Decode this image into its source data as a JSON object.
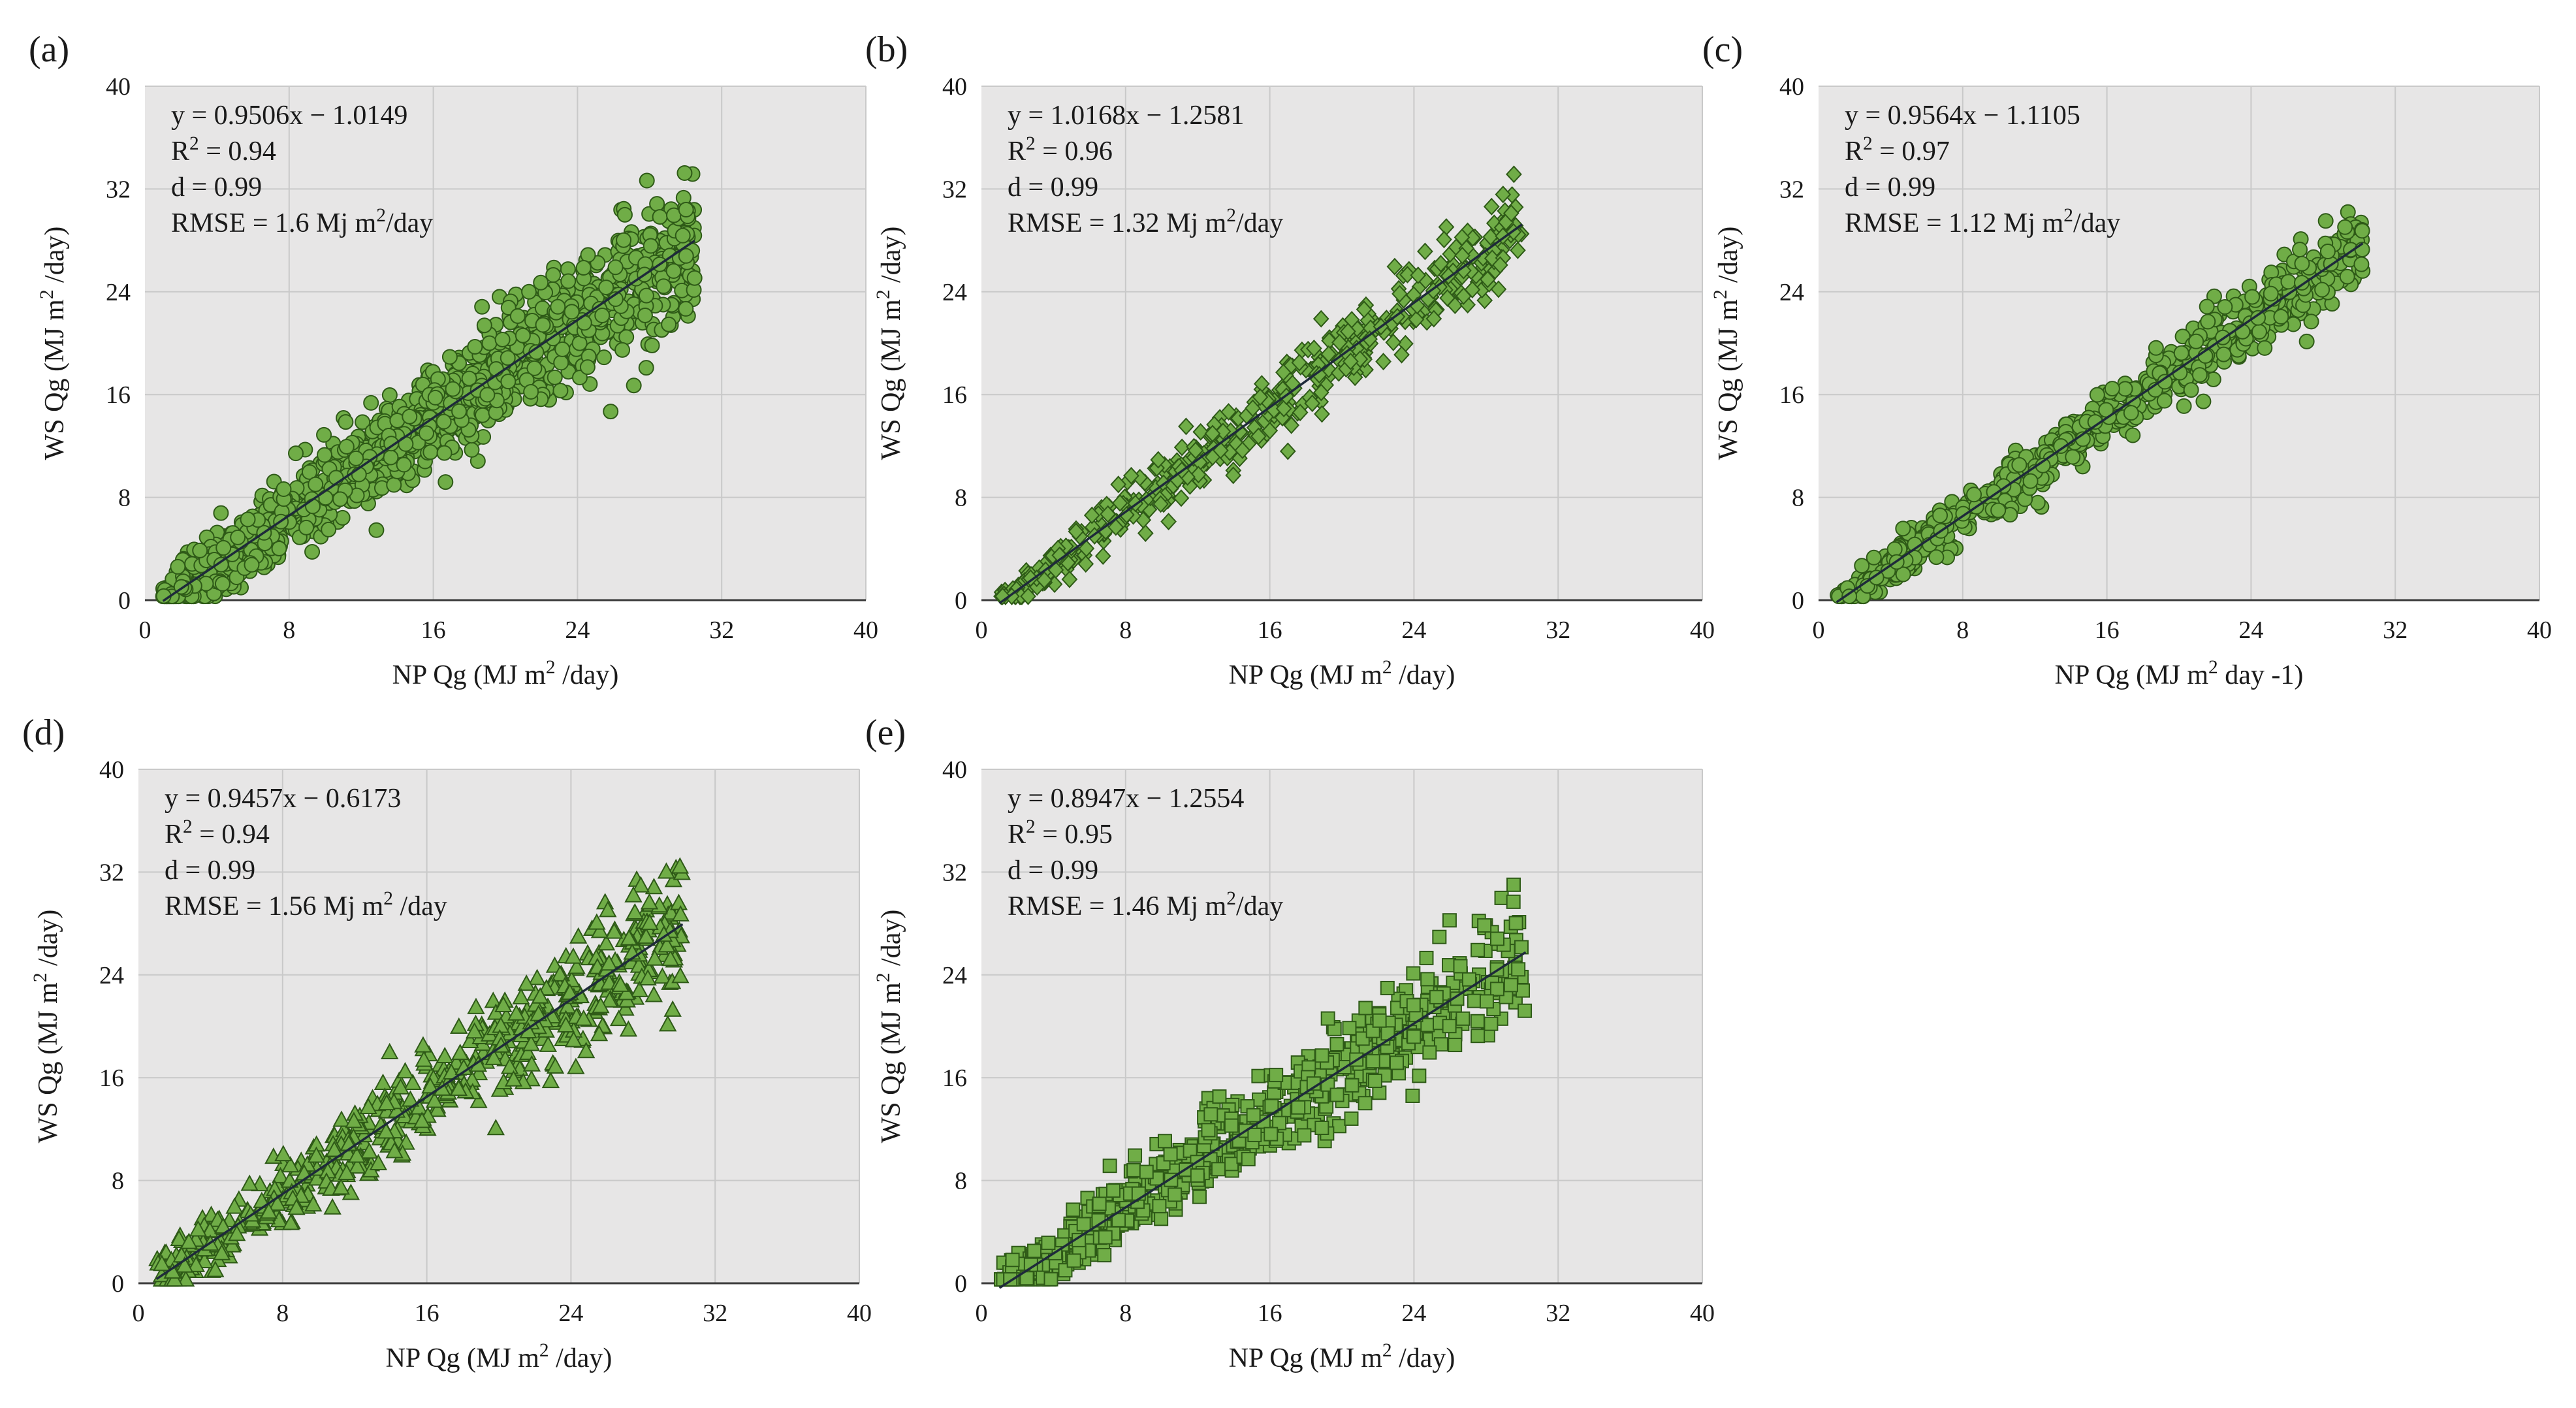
{
  "figure_title": "",
  "chart_data": [
    {
      "type": "scatter",
      "panel_label": "(a)",
      "marker": "circle",
      "xlabel": "NP Qg (MJ m2 /day)",
      "ylabel": "WS Qg (MJ m2 /day)",
      "xlim": [
        0,
        40
      ],
      "ylim": [
        0,
        40
      ],
      "ticks": [
        "0",
        "8",
        "16",
        "24",
        "32",
        "40"
      ],
      "grid": true,
      "fit": {
        "slope": 0.9506,
        "intercept": -1.0149,
        "x_range": [
          1,
          30.5
        ]
      },
      "stats": [
        "y = 0.9506x − 1.0149",
        "R2 = 0.94",
        "d = 0.99",
        "RMSE = 1.6 Mj m2/day"
      ],
      "point_cloud": {
        "count": 1400,
        "x_range": [
          1,
          30.5
        ],
        "residual_sd": 1.6
      }
    },
    {
      "type": "scatter",
      "panel_label": "(b)",
      "marker": "diamond",
      "xlabel": "NP Qg (MJ m2 /day)",
      "ylabel": "WS Qg (MJ m2 /day)",
      "xlim": [
        0,
        40
      ],
      "ylim": [
        0,
        40
      ],
      "ticks": [
        "0",
        "8",
        "16",
        "24",
        "32",
        "40"
      ],
      "grid": true,
      "fit": {
        "slope": 1.0168,
        "intercept": -1.2581,
        "x_range": [
          1,
          30
        ]
      },
      "stats": [
        "y = 1.0168x − 1.2581",
        "R2 = 0.96",
        "d = 0.99",
        "RMSE = 1.32 Mj m2/day"
      ],
      "point_cloud": {
        "count": 500,
        "x_range": [
          1,
          30
        ],
        "residual_sd": 1.2
      }
    },
    {
      "type": "scatter",
      "panel_label": "(c)",
      "marker": "circle",
      "xlabel": "NP Qg (MJ m2 day -1)",
      "ylabel": "WS Qg (MJ m2 /day)",
      "xlim": [
        0,
        40
      ],
      "ylim": [
        0,
        40
      ],
      "ticks": [
        "0",
        "8",
        "16",
        "24",
        "32",
        "40"
      ],
      "grid": true,
      "fit": {
        "slope": 0.9564,
        "intercept": -1.1105,
        "x_range": [
          1,
          30.2
        ]
      },
      "stats": [
        "y = 0.9564x − 1.1105",
        "R2 = 0.97",
        "d = 0.99",
        "RMSE = 1.12 Mj m2/day"
      ],
      "point_cloud": {
        "count": 700,
        "x_range": [
          1,
          30.2
        ],
        "residual_sd": 1.0
      }
    },
    {
      "type": "scatter",
      "panel_label": "(d)",
      "marker": "triangle",
      "xlabel": "NP Qg (MJ m2 /day)",
      "ylabel": "WS Qg (MJ m2 /day)",
      "xlim": [
        0,
        40
      ],
      "ylim": [
        0,
        40
      ],
      "ticks": [
        "0",
        "8",
        "16",
        "24",
        "32",
        "40"
      ],
      "grid": true,
      "fit": {
        "slope": 0.9457,
        "intercept": -0.6173,
        "x_range": [
          1,
          30.2
        ]
      },
      "stats": [
        "y = 0.9457x − 0.6173",
        "R2 = 0.94",
        "d = 0.99",
        "RMSE = 1.56 Mj m2 /day"
      ],
      "point_cloud": {
        "count": 650,
        "x_range": [
          1,
          30.2
        ],
        "residual_sd": 1.5
      }
    },
    {
      "type": "scatter",
      "panel_label": "(e)",
      "marker": "square",
      "xlabel": "NP Qg (MJ m2 /day)",
      "ylabel": "WS Qg (MJ m2 /day)",
      "xlim": [
        0,
        40
      ],
      "ylim": [
        0,
        40
      ],
      "ticks": [
        "0",
        "8",
        "16",
        "24",
        "32",
        "40"
      ],
      "grid": true,
      "fit": {
        "slope": 0.8947,
        "intercept": -1.2554,
        "x_range": [
          1,
          30.2
        ]
      },
      "stats": [
        "y = 0.8947x − 1.2554",
        "R2 = 0.95",
        "d = 0.99",
        "RMSE = 1.46 Mj m2/day"
      ],
      "point_cloud": {
        "count": 650,
        "x_range": [
          1,
          30.2
        ],
        "residual_sd": 1.5
      }
    }
  ]
}
